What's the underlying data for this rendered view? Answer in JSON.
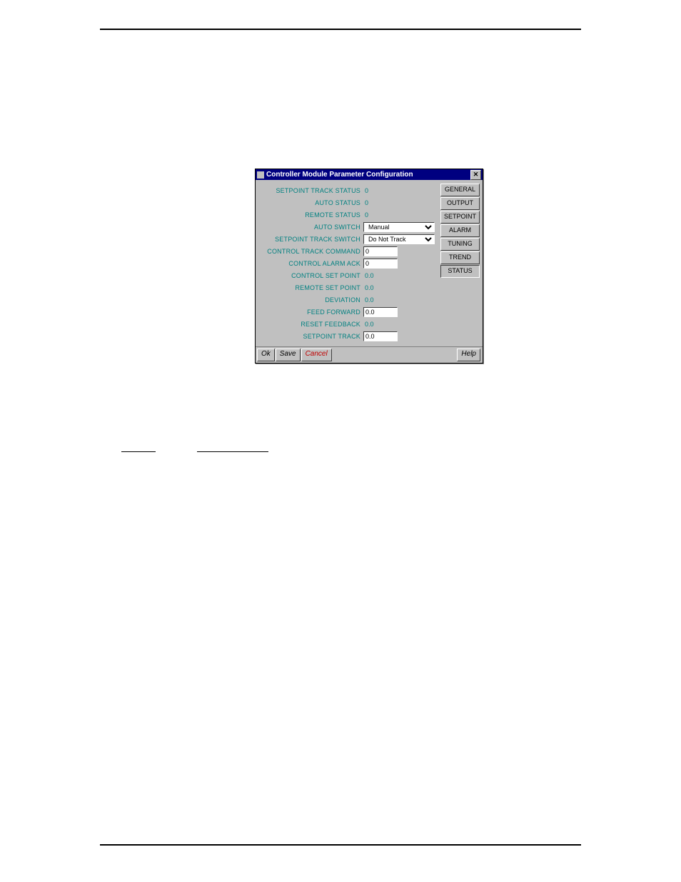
{
  "page": {
    "rule_color": "#000000"
  },
  "dialog": {
    "title": "Controller Module Parameter Configuration",
    "titlebar_bg": "#000080",
    "titlebar_fg": "#ffffff",
    "body_bg": "#c0c0c0",
    "label_color": "#008080",
    "rows": [
      {
        "label": "SETPOINT TRACK STATUS",
        "type": "static",
        "value": "0"
      },
      {
        "label": "AUTO STATUS",
        "type": "static",
        "value": "0"
      },
      {
        "label": "REMOTE STATUS",
        "type": "static",
        "value": "0"
      },
      {
        "label": "AUTO SWITCH",
        "type": "select",
        "value": "Manual",
        "options": [
          "Manual"
        ]
      },
      {
        "label": "SETPOINT TRACK SWITCH",
        "type": "select",
        "value": "Do Not Track",
        "options": [
          "Do Not Track"
        ]
      },
      {
        "label": "CONTROL TRACK COMMAND",
        "type": "text",
        "value": "0"
      },
      {
        "label": "CONTROL ALARM ACK",
        "type": "text",
        "value": "0"
      },
      {
        "label": "CONTROL SET POINT",
        "type": "static",
        "value": "0.0"
      },
      {
        "label": "REMOTE SET POINT",
        "type": "static",
        "value": "0.0"
      },
      {
        "label": "DEVIATION",
        "type": "static",
        "value": "0.0"
      },
      {
        "label": "FEED FORWARD",
        "type": "text",
        "value": "0.0"
      },
      {
        "label": "RESET FEEDBACK",
        "type": "static",
        "value": "0.0"
      },
      {
        "label": "SETPOINT TRACK",
        "type": "text",
        "value": "0.0"
      }
    ],
    "tabs": [
      {
        "label": "GENERAL",
        "active": false
      },
      {
        "label": "OUTPUT",
        "active": false
      },
      {
        "label": "SETPOINT",
        "active": false
      },
      {
        "label": "ALARM",
        "active": false
      },
      {
        "label": "TUNING",
        "active": false
      },
      {
        "label": "TREND",
        "active": false
      },
      {
        "label": "STATUS",
        "active": true
      }
    ],
    "buttons": {
      "ok": "Ok",
      "save": "Save",
      "cancel": "Cancel",
      "help": "Help"
    }
  }
}
